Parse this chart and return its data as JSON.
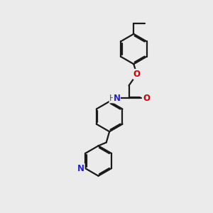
{
  "bg_color": "#ebebeb",
  "bond_color": "#1a1a1a",
  "bond_width": 1.6,
  "dbo": 0.055,
  "atom_colors": {
    "O": "#cc0000",
    "N": "#2222cc"
  },
  "font_size": 8.5
}
